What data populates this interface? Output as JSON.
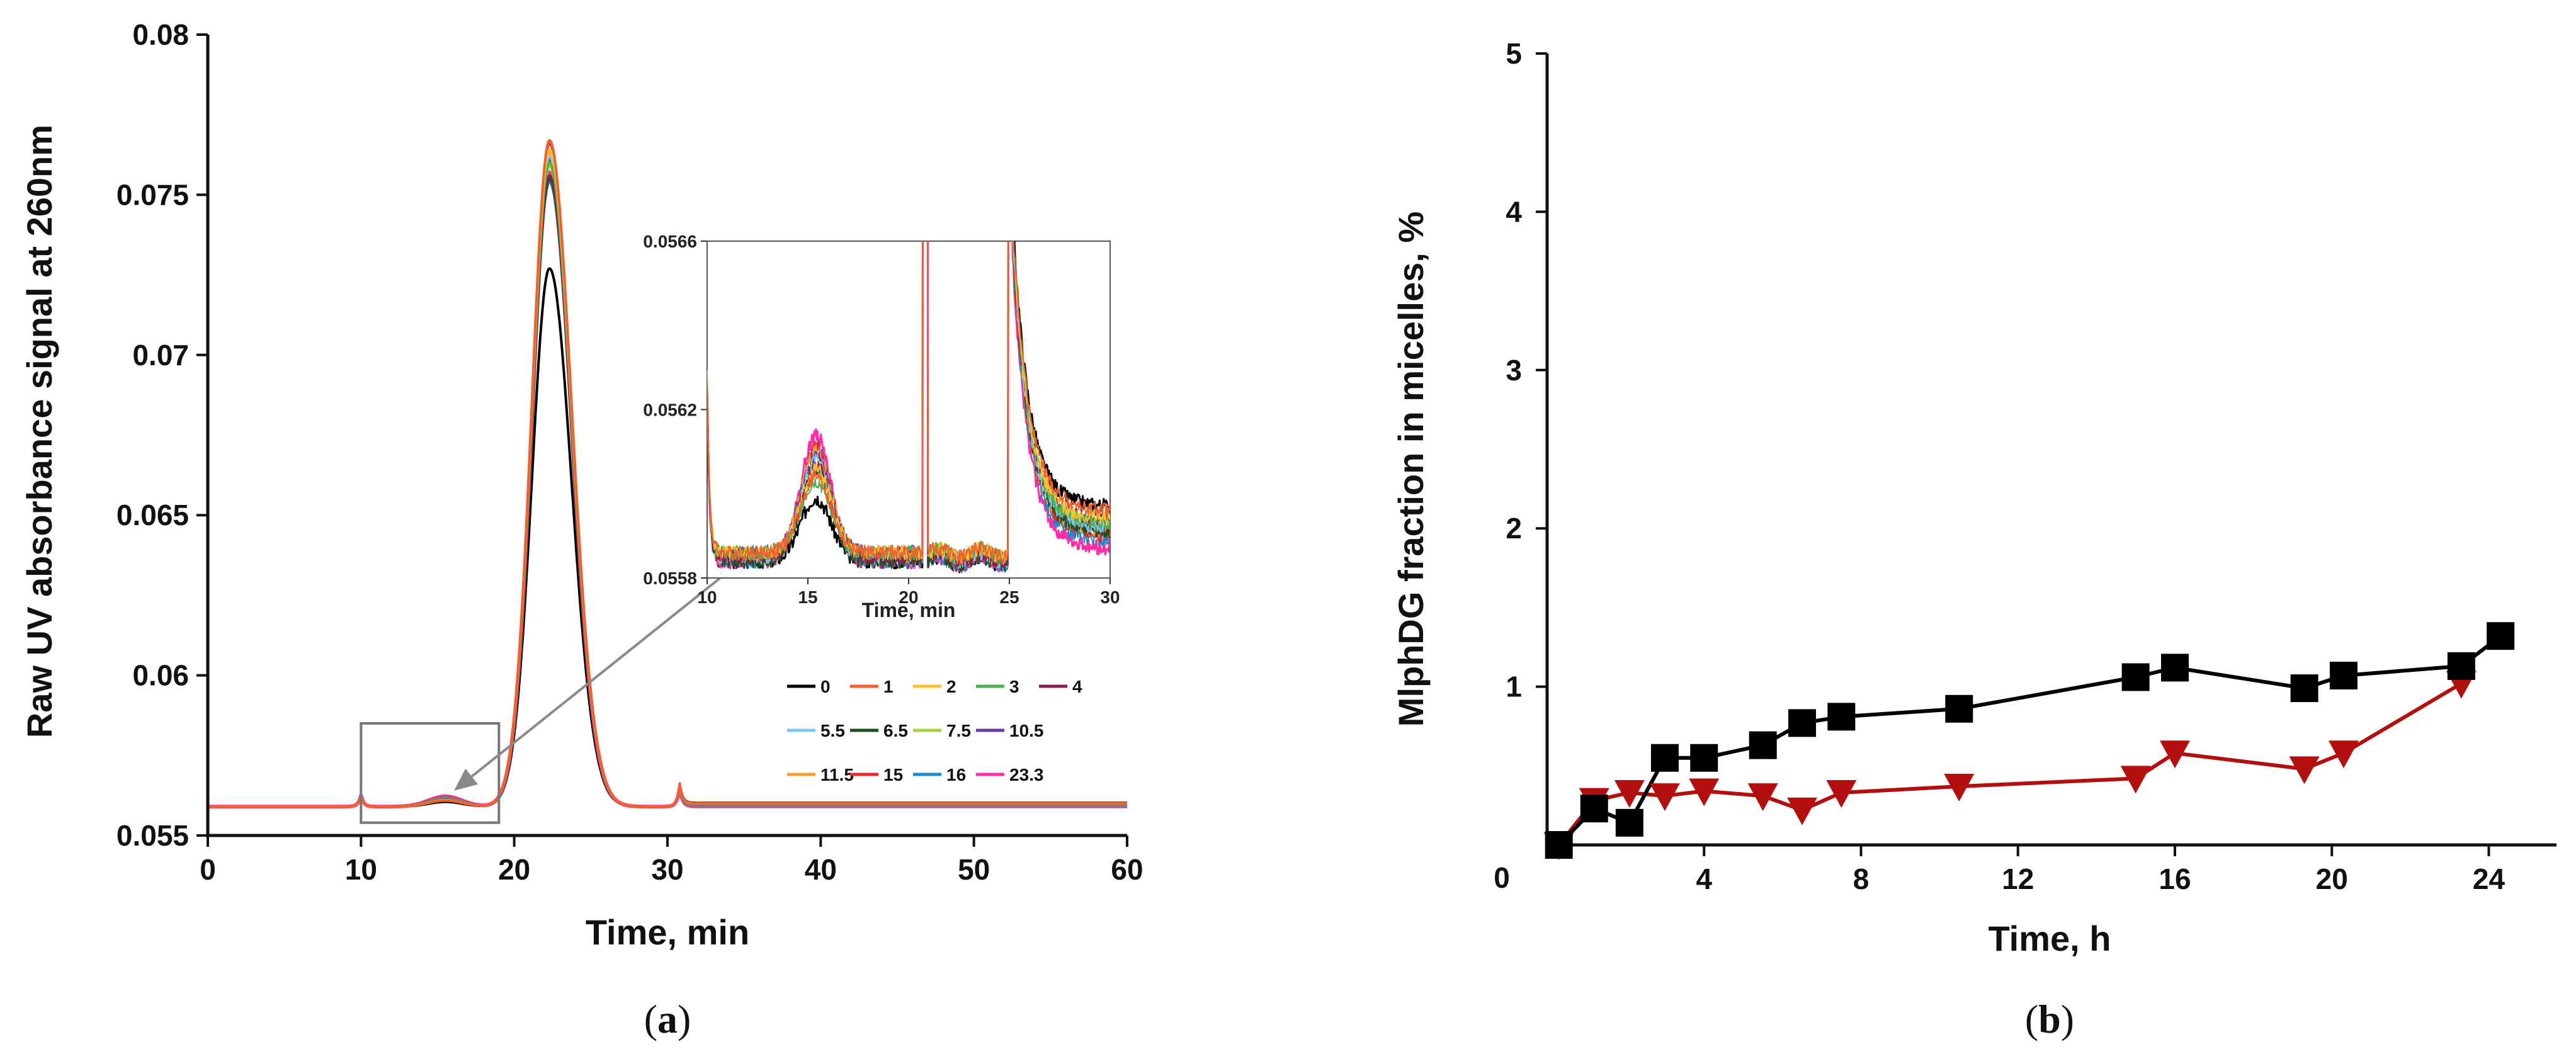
{
  "chart_data": [
    {
      "panel": "a",
      "panel_label": {
        "open": "(",
        "letter": "a",
        "close": ")"
      },
      "type": "line",
      "title": "",
      "xlabel": "Time, min",
      "ylabel": "Raw UV absorbance signal at 260nm",
      "xlim": [
        0,
        60
      ],
      "ylim": [
        0.055,
        0.08
      ],
      "xticks": [
        0,
        10,
        20,
        30,
        40,
        50,
        60
      ],
      "yticks": [
        "0.055",
        "0.06",
        "0.065",
        "0.07",
        "0.075",
        "0.08"
      ],
      "legend_position": "bottom-right",
      "legend_entries": [
        "0",
        "1",
        "2",
        "3",
        "4",
        "5.5",
        "6.5",
        "7.5",
        "10.5",
        "11.5",
        "15",
        "16",
        "23.3"
      ],
      "series_colors": [
        "#000000",
        "#f2612d",
        "#f4c430",
        "#4caf50",
        "#8b1f4c",
        "#7ec8f0",
        "#1e4d1e",
        "#a8d04a",
        "#6b3fa0",
        "#f4a030",
        "#e82828",
        "#1a8ac8",
        "#ff2ea6"
      ],
      "baseline": 0.0559,
      "main_peak": {
        "center_min": 22.3,
        "width_min": 1.15,
        "heights_above_baseline": [
          0.0168,
          0.0208,
          0.0205,
          0.0201,
          0.0197,
          0.0203,
          0.0196,
          0.02,
          0.0202,
          0.0204,
          0.0207,
          0.0195,
          0.0198
        ]
      },
      "small_peak": {
        "center_min": 15.5,
        "heights_above_baseline": [
          0.00015,
          0.00019,
          0.0002,
          0.00021,
          0.00022,
          0.00023,
          0.00024,
          0.00025,
          0.00026,
          0.00027,
          0.00029,
          0.0003,
          0.00032
        ]
      },
      "spike_at_min": [
        10.0,
        30.8
      ],
      "zoom_box": {
        "x_range": [
          10,
          19
        ],
        "y_range": [
          0.0554,
          0.0585
        ]
      },
      "inset": {
        "xlabel": "Time, min",
        "xlim": [
          10,
          30
        ],
        "ylim": [
          0.0558,
          0.0566
        ],
        "xticks": [
          10,
          15,
          20,
          25,
          30
        ],
        "yticks": [
          "0.0558",
          "0.0562",
          "0.0566"
        ],
        "baseline_levels": [
          0.05584,
          0.05586,
          0.05586,
          0.05586,
          0.05585,
          0.05585,
          0.05584,
          0.05585,
          0.05586,
          0.05586,
          0.05585,
          0.05584,
          0.05584
        ],
        "peak_center_min": 15.4,
        "peak_heights": [
          0.05599,
          0.05604,
          0.05606,
          0.05603,
          0.05607,
          0.05608,
          0.05606,
          0.05605,
          0.05609,
          0.0561,
          0.05612,
          0.05611,
          0.05614
        ],
        "tail_end_levels": [
          0.05597,
          0.05596,
          0.05594,
          0.05593,
          0.05594,
          0.05592,
          0.05591,
          0.05593,
          0.05592,
          0.05591,
          0.0559,
          0.05589,
          0.05587
        ]
      }
    },
    {
      "panel": "b",
      "panel_label": {
        "open": "(",
        "letter": "b",
        "close": ")"
      },
      "type": "line",
      "title": "",
      "xlabel": "Time, h",
      "ylabel": "MlphDG fraction in micelles, %",
      "xlim": [
        0,
        25
      ],
      "ylim": [
        0,
        5
      ],
      "xticks": [
        4,
        8,
        12,
        16,
        20,
        24
      ],
      "yticks": [
        1,
        2,
        3,
        4,
        5
      ],
      "origin_label": "0",
      "series": [
        {
          "name": "black squares",
          "color": "#000000",
          "marker": "square",
          "x": [
            0.3,
            1.2,
            2.1,
            3.0,
            4.0,
            5.5,
            6.5,
            7.5,
            10.5,
            15.0,
            16.0,
            19.3,
            20.3,
            23.3,
            24.3
          ],
          "y": [
            0.0,
            0.23,
            0.14,
            0.55,
            0.55,
            0.63,
            0.77,
            0.81,
            0.86,
            1.06,
            1.12,
            0.99,
            1.07,
            1.13,
            1.32
          ]
        },
        {
          "name": "red triangles",
          "color": "#b30f0f",
          "marker": "triangle-down",
          "x": [
            0.3,
            1.2,
            2.1,
            3.0,
            4.0,
            5.5,
            6.5,
            7.5,
            10.5,
            15.0,
            16.0,
            19.3,
            20.3,
            23.3
          ],
          "y": [
            0.0,
            0.28,
            0.33,
            0.31,
            0.34,
            0.31,
            0.22,
            0.33,
            0.37,
            0.42,
            0.58,
            0.48,
            0.58,
            1.02
          ]
        }
      ]
    }
  ]
}
